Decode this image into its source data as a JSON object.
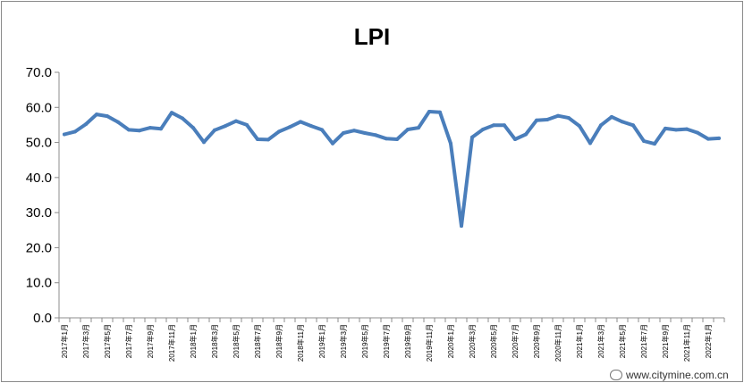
{
  "chart_data": {
    "type": "line",
    "title": "LPI",
    "xlabel": "",
    "ylabel": "",
    "ylim": [
      0,
      70
    ],
    "yticks": [
      "0.0",
      "10.0",
      "20.0",
      "30.0",
      "40.0",
      "50.0",
      "60.0",
      "70.0"
    ],
    "grid": false,
    "legend": "none",
    "line_color": "#4a7ebb",
    "x_labels": [
      "2017年1月",
      "2017年3月",
      "2017年5月",
      "2017年7月",
      "2017年9月",
      "2017年11月",
      "2018年1月",
      "2018年3月",
      "2018年5月",
      "2018年7月",
      "2018年9月",
      "2018年11月",
      "2019年1月",
      "2019年3月",
      "2019年5月",
      "2019年7月",
      "2019年9月",
      "2019年11月",
      "2020年1月",
      "2020年3月",
      "2020年5月",
      "2020年7月",
      "2020年9月",
      "2020年11月",
      "2021年1月",
      "2021年3月",
      "2021年5月",
      "2021年7月",
      "2021年9月",
      "2021年11月",
      "2022年1月"
    ],
    "series": [
      {
        "values": [
          52.3,
          53.1,
          55.2,
          58.0,
          57.5,
          55.8,
          53.6,
          53.4,
          54.2,
          53.9,
          58.5,
          56.9,
          54.2,
          50.1,
          53.5,
          54.7,
          56.1,
          55.0,
          50.9,
          50.8,
          53.1,
          54.4,
          55.9,
          54.7,
          53.6,
          49.7,
          52.7,
          53.4,
          52.7,
          52.1,
          51.1,
          50.9,
          53.7,
          54.2,
          58.8,
          58.6,
          49.7,
          26.2,
          51.5,
          53.7,
          54.9,
          54.9,
          50.9,
          52.3,
          56.3,
          56.5,
          57.6,
          57.0,
          54.7,
          49.8,
          54.9,
          57.3,
          55.9,
          54.9,
          50.4,
          49.6,
          54.0,
          53.6,
          53.8,
          52.8,
          51.0,
          51.2
        ]
      }
    ]
  },
  "watermark": {
    "text": "www.citymine.com.cn",
    "logo": "citymine-logo"
  }
}
